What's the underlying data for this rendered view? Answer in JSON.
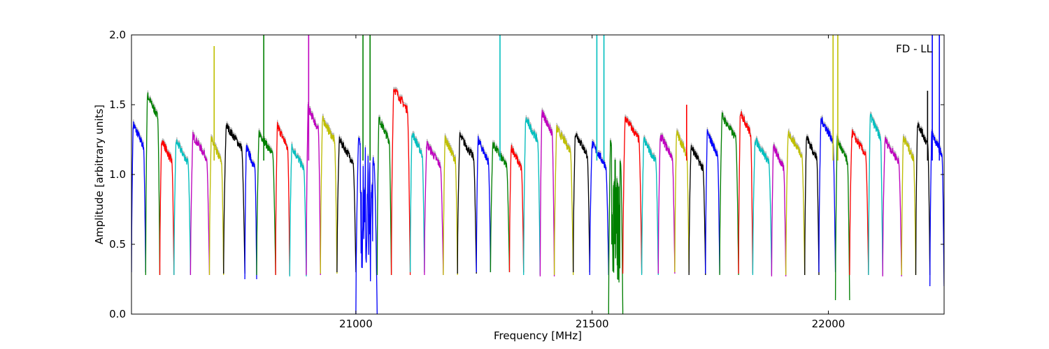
{
  "chart_data": {
    "type": "line",
    "title": "",
    "xlabel": "Frequency [MHz]",
    "ylabel": "Amplitude [arbitrary units]",
    "annotation": "FD - LL",
    "annotation_position": "top-right",
    "xlim": [
      20525,
      22245
    ],
    "ylim": [
      0.0,
      2.0
    ],
    "xticks": [
      21000,
      21500,
      22000
    ],
    "xtick_labels": [
      "21000",
      "21500",
      "22000"
    ],
    "yticks": [
      0.0,
      0.5,
      1.0,
      1.5,
      2.0
    ],
    "ytick_labels": [
      "0.0",
      "0.5",
      "1.0",
      "1.5",
      "2.0"
    ],
    "grid": false,
    "legend": "none",
    "background_trace_color": "#bbbbbb",
    "color_cycle": [
      "#0000ff",
      "#008000",
      "#ff0000",
      "#00bfbf",
      "#bf00bf",
      "#bfbf00",
      "#000000"
    ],
    "band_edges": [
      20525,
      20555,
      20585,
      20615,
      20650,
      20690,
      20720,
      20765,
      20790,
      20830,
      20860,
      20895,
      20925,
      20960,
      21000,
      21045,
      21075,
      21115,
      21145,
      21185,
      21215,
      21255,
      21285,
      21325,
      21355,
      21390,
      21420,
      21460,
      21495,
      21535,
      21565,
      21605,
      21640,
      21675,
      21705,
      21740,
      21770,
      21810,
      21840,
      21880,
      21910,
      21950,
      21980,
      22015,
      22045,
      22085,
      22115,
      22155,
      22185,
      22215,
      22245
    ],
    "band_peaks": [
      1.36,
      1.57,
      1.25,
      1.24,
      1.28,
      1.25,
      1.35,
      1.2,
      1.3,
      1.35,
      1.2,
      1.48,
      1.4,
      1.25,
      1.25,
      1.4,
      1.62,
      1.3,
      1.22,
      1.26,
      1.28,
      1.25,
      1.22,
      1.2,
      1.4,
      1.45,
      1.33,
      1.3,
      1.22,
      1.23,
      1.41,
      1.25,
      1.28,
      1.3,
      1.2,
      1.3,
      1.42,
      1.45,
      1.25,
      1.2,
      1.3,
      1.27,
      1.4,
      1.25,
      1.3,
      1.42,
      1.25,
      1.27,
      1.37,
      1.3
    ],
    "band_minima": [
      0.3,
      0.28,
      0.28,
      0.28,
      0.28,
      0.28,
      0.29,
      0.25,
      0.28,
      0.28,
      0.27,
      0.28,
      0.29,
      0.3,
      0.0,
      0.28,
      0.28,
      0.3,
      0.28,
      0.28,
      0.29,
      0.3,
      0.3,
      0.3,
      0.28,
      0.27,
      0.28,
      0.3,
      0.28,
      0.0,
      0.29,
      0.28,
      0.29,
      0.3,
      0.28,
      0.29,
      0.28,
      0.29,
      0.28,
      0.27,
      0.28,
      0.28,
      0.3,
      0.1,
      0.28,
      0.28,
      0.27,
      0.28,
      0.28,
      0.2
    ],
    "spikes": [
      {
        "x": 20700,
        "y": 1.92,
        "color": "#bfbf00"
      },
      {
        "x": 20805,
        "y": 2.0,
        "color": "#008000"
      },
      {
        "x": 20900,
        "y": 2.0,
        "color": "#bf00bf"
      },
      {
        "x": 21015,
        "y": 2.0,
        "color": "#008000"
      },
      {
        "x": 21030,
        "y": 2.0,
        "color": "#008000"
      },
      {
        "x": 21305,
        "y": 2.0,
        "color": "#00bfbf"
      },
      {
        "x": 21510,
        "y": 2.0,
        "color": "#00bfbf"
      },
      {
        "x": 21525,
        "y": 2.0,
        "color": "#00bfbf"
      },
      {
        "x": 21700,
        "y": 1.5,
        "color": "#ff0000"
      },
      {
        "x": 22010,
        "y": 2.0,
        "color": "#bfbf00"
      },
      {
        "x": 22020,
        "y": 2.0,
        "color": "#bfbf00"
      },
      {
        "x": 22210,
        "y": 1.6,
        "color": "#000000"
      },
      {
        "x": 22220,
        "y": 2.0,
        "color": "#0000ff"
      },
      {
        "x": 22235,
        "y": 2.0,
        "color": "#0000ff"
      }
    ]
  }
}
